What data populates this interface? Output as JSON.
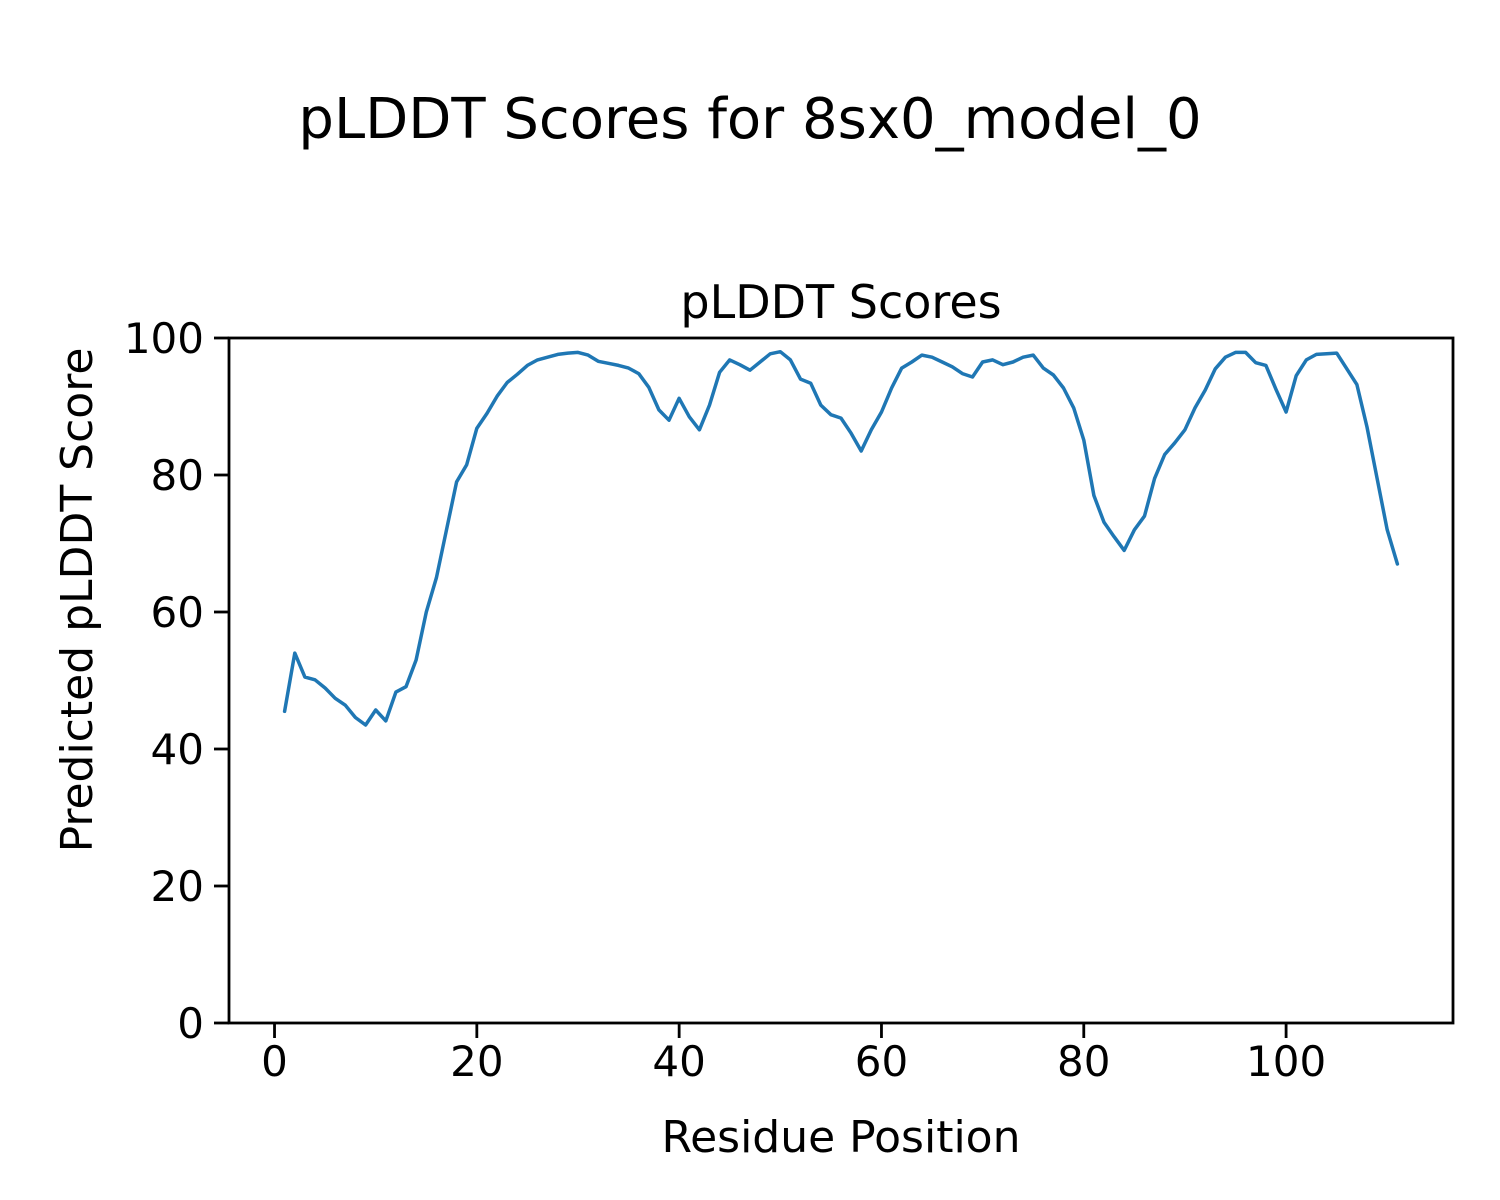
{
  "figure": {
    "suptitle": "pLDDT Scores for 8sx0_model_0",
    "axes_title": "pLDDT Scores",
    "xlabel": "Residue Position",
    "ylabel": "Predicted pLDDT Score"
  },
  "chart_data": {
    "type": "line",
    "title": "pLDDT Scores",
    "suptitle": "pLDDT Scores for 8sx0_model_0",
    "xlabel": "Residue Position",
    "ylabel": "Predicted pLDDT Score",
    "line_color": "#1f77b4",
    "line_width": 3.5,
    "background_color": "#ffffff",
    "axis_color": "#000000",
    "grid": false,
    "legend_position": "none",
    "xlim": [
      -4.5,
      116.5
    ],
    "ylim": [
      0,
      100
    ],
    "xticks": [
      0,
      20,
      40,
      60,
      80,
      100
    ],
    "yticks": [
      0,
      20,
      40,
      60,
      80,
      100
    ],
    "x_start": 1,
    "series_name": "pLDDT",
    "values": [
      45.5,
      54.0,
      50.5,
      50.1,
      48.9,
      47.4,
      46.4,
      44.6,
      43.5,
      45.7,
      44.1,
      48.3,
      49.1,
      53.0,
      60.0,
      65.0,
      72.0,
      79.0,
      81.5,
      86.8,
      89.0,
      91.5,
      93.5,
      94.7,
      96.0,
      96.8,
      97.2,
      97.6,
      97.8,
      97.9,
      97.5,
      96.6,
      96.3,
      96.0,
      95.6,
      94.8,
      92.8,
      89.5,
      88.0,
      91.2,
      88.5,
      86.6,
      90.2,
      95.0,
      96.8,
      96.1,
      95.3,
      96.5,
      97.7,
      98.0,
      96.8,
      94.0,
      93.4,
      90.2,
      88.8,
      88.3,
      86.1,
      83.5,
      86.6,
      89.2,
      92.7,
      95.6,
      96.5,
      97.5,
      97.2,
      96.5,
      95.8,
      94.8,
      94.3,
      96.5,
      96.8,
      96.1,
      96.5,
      97.2,
      97.5,
      95.6,
      94.6,
      92.7,
      89.8,
      85.1,
      77.0,
      73.1,
      71.0,
      69.0,
      72.0,
      74.0,
      79.5,
      83.0,
      84.7,
      86.6,
      89.8,
      92.4,
      95.5,
      97.2,
      97.9,
      97.9,
      96.4,
      96.0,
      92.5,
      89.2,
      94.5,
      96.8,
      97.6,
      97.7,
      97.8,
      95.5,
      93.2,
      87.0,
      79.5,
      72.0,
      67.0
    ]
  }
}
